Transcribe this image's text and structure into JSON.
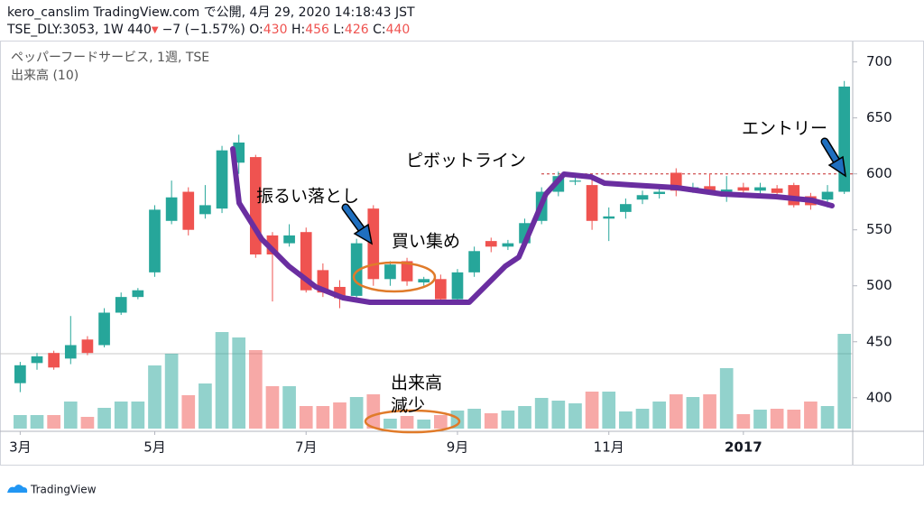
{
  "header": {
    "line1": "kero_canslim TradingView.com で公開, 4月 29, 2020 14:18:43 JST",
    "quote": [
      "TSE_DLY:3053, 1W 440",
      "▼",
      "−7 (−1.57%)",
      "O:",
      "430",
      "H:",
      "456",
      "L:",
      "426",
      "C:",
      "440"
    ]
  },
  "legend": {
    "symbol": "ペッパーフードサービス, 1週, TSE",
    "volume": "出来高 (10)"
  },
  "footer": "TradingView",
  "chart_data": {
    "type": "candlestick",
    "up_color": "#26a69a",
    "down_color": "#ef5350",
    "open": [
      413,
      431,
      440,
      435,
      452,
      447,
      476,
      490,
      512,
      558,
      584,
      564,
      569,
      610,
      615,
      545,
      538,
      548,
      514,
      499,
      491,
      569,
      506,
      522,
      503,
      506,
      488,
      512,
      540,
      535,
      538,
      558,
      584,
      593,
      590,
      560,
      566,
      577,
      582,
      601,
      586,
      589,
      584,
      588,
      585,
      587,
      590,
      580,
      577,
      584
    ],
    "high": [
      432,
      440,
      442,
      473,
      455,
      480,
      494,
      498,
      572,
      594,
      588,
      590,
      625,
      635,
      617,
      548,
      555,
      552,
      520,
      505,
      542,
      572,
      522,
      525,
      508,
      510,
      515,
      535,
      543,
      541,
      560,
      588,
      602,
      598,
      595,
      570,
      578,
      585,
      590,
      605,
      592,
      600,
      598,
      592,
      592,
      590,
      592,
      583,
      590,
      683
    ],
    "low": [
      405,
      425,
      425,
      430,
      438,
      445,
      474,
      488,
      508,
      555,
      545,
      560,
      565,
      600,
      525,
      486,
      535,
      494,
      490,
      480,
      488,
      500,
      500,
      500,
      500,
      485,
      485,
      508,
      530,
      532,
      535,
      555,
      580,
      590,
      550,
      540,
      560,
      573,
      578,
      580,
      583,
      582,
      575,
      580,
      582,
      578,
      570,
      568,
      570,
      582
    ],
    "close": [
      429,
      437,
      427,
      447,
      440,
      476,
      490,
      496,
      568,
      579,
      550,
      572,
      621,
      628,
      528,
      528,
      545,
      496,
      494,
      489,
      538,
      506,
      519,
      504,
      506,
      488,
      512,
      531,
      535,
      538,
      556,
      584,
      598,
      594,
      558,
      562,
      573,
      581,
      584,
      585,
      588,
      585,
      586,
      585,
      588,
      583,
      572,
      572,
      584,
      678
    ],
    "volume": [
      15,
      15,
      15,
      30,
      13,
      23,
      30,
      30,
      70,
      83,
      37,
      50,
      107,
      101,
      87,
      47,
      47,
      25,
      25,
      29,
      35,
      38,
      11,
      14,
      10,
      15,
      20,
      22,
      17,
      20,
      25,
      34,
      31,
      28,
      41,
      41,
      19,
      22,
      30,
      38,
      35,
      38,
      67,
      16,
      21,
      22,
      21,
      30,
      25,
      105
    ],
    "xlim": [
      -1.2,
      49.5
    ],
    "ylim": [
      370,
      711
    ],
    "yticks": [
      400,
      450,
      500,
      550,
      600,
      650,
      700
    ],
    "xticks": [
      {
        "value": 0,
        "label": "3月"
      },
      {
        "value": 8,
        "label": "5月"
      },
      {
        "value": 17,
        "label": "7月"
      },
      {
        "value": 26,
        "label": "9月"
      },
      {
        "value": 35,
        "label": "11月"
      },
      {
        "value": 43,
        "label": "2017"
      }
    ],
    "pivot_line": {
      "label": "ピボットライン",
      "value": 600
    },
    "annotations": [
      "振るい落とし",
      "買い集め",
      "出来高",
      "減少",
      "エントリー"
    ]
  }
}
